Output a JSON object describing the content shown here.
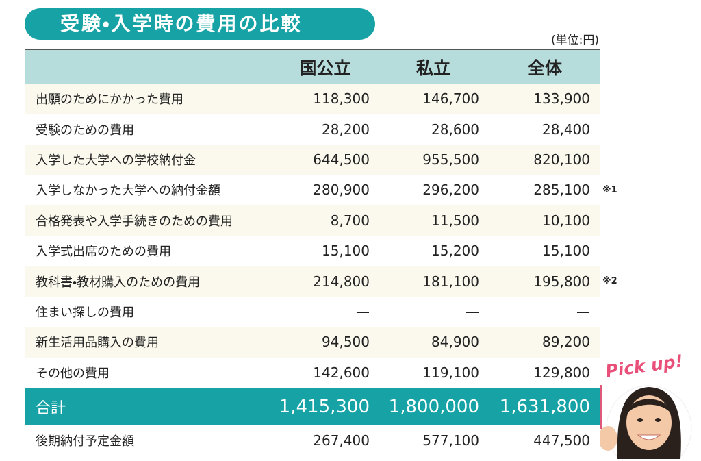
{
  "title": "受験・入学時の費用の比較",
  "unit": "(単位:円)",
  "table": {
    "header": [
      "国公立",
      "私立",
      "全体"
    ],
    "rows": [
      {
        "label": "出願のためにかかった費用",
        "values": [
          "118,300",
          "146,700",
          "133,900"
        ]
      },
      {
        "label": "受験のための費用",
        "values": [
          "28,200",
          "28,600",
          "28,400"
        ]
      },
      {
        "label": "入学した大学への学校納付金",
        "values": [
          "644,500",
          "955,500",
          "820,100"
        ]
      },
      {
        "label": "入学しなかった大学への納付金額",
        "values": [
          "280,900",
          "296,200",
          "285,100"
        ],
        "note": "※1"
      },
      {
        "label": "合格発表や入学手続きのための費用",
        "values": [
          "8,700",
          "11,500",
          "10,100"
        ]
      },
      {
        "label": "入学式出席のための費用",
        "values": [
          "15,100",
          "15,200",
          "15,100"
        ]
      },
      {
        "label": "教科書・教材購入のための費用",
        "values": [
          "214,800",
          "181,100",
          "195,800"
        ],
        "note": "※2"
      },
      {
        "label": "住まい探しの費用",
        "values": [
          "—",
          "—",
          "—"
        ]
      },
      {
        "label": "新生活用品購入の費用",
        "values": [
          "94,500",
          "84,900",
          "89,200"
        ]
      },
      {
        "label": "その他の費用",
        "values": [
          "142,600",
          "119,100",
          "129,800"
        ]
      }
    ],
    "total": {
      "label": "合計",
      "values": [
        "1,415,300",
        "1,800,000",
        "1,631,800"
      ]
    },
    "footer_row": {
      "label": "後期納付予定金額",
      "values": [
        "267,400",
        "577,100",
        "447,500"
      ]
    }
  },
  "badge": "Pick up!"
}
